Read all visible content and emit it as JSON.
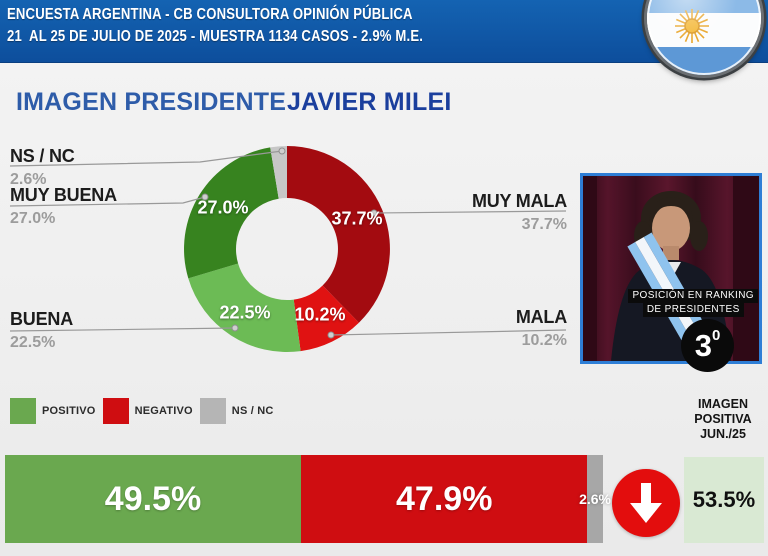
{
  "header": {
    "line1": "ENCUESTA ARGENTINA - CB CONSULTORA OPINIÓN PÚBLICA",
    "line2": "21  AL 25 DE JULIO DE 2025 - MUESTRA 1134 CASOS - 2.9% M.E.",
    "flag_icon": "argentina-flag-badge"
  },
  "title": {
    "label": "IMAGEN PRESIDENTE",
    "subject": "JAVIER MILEI"
  },
  "chart_data": [
    {
      "type": "pie",
      "subtype": "donut",
      "title": "IMAGEN PRESIDENTE JAVIER MILEI",
      "direction": "clockwise",
      "start_angle_deg": 0,
      "segments": [
        {
          "label": "MUY MALA",
          "value": 37.7,
          "color": "#a30b10"
        },
        {
          "label": "MALA",
          "value": 10.2,
          "color": "#e01212"
        },
        {
          "label": "BUENA",
          "value": 22.5,
          "color": "#6cbb55"
        },
        {
          "label": "MUY BUENA",
          "value": 27.0,
          "color": "#37831f"
        },
        {
          "label": "NS / NC",
          "value": 2.6,
          "color": "#c7c7c7"
        }
      ]
    },
    {
      "type": "bar",
      "subtype": "stacked-horizontal",
      "segments": [
        {
          "label": "POSITIVO",
          "value": 49.5,
          "color": "#6aa84f"
        },
        {
          "label": "NEGATIVO",
          "value": 47.9,
          "color": "#cf0d11"
        },
        {
          "label": "NS / NC",
          "value": 2.6,
          "color": "#a7a7a7"
        }
      ],
      "comparison": {
        "label_lines": [
          "IMAGEN",
          "POSITIVA",
          "JUN./25"
        ],
        "value": 53.5,
        "trend": "down"
      }
    }
  ],
  "legend": {
    "items": [
      {
        "label": "POSITIVO",
        "color": "#6aa84f"
      },
      {
        "label": "NEGATIVO",
        "color": "#cf0d11"
      },
      {
        "label": "NS / NC",
        "color": "#b5b5b5"
      }
    ]
  },
  "ranking": {
    "caption_line1": "POSICIÓN EN RANKING",
    "caption_line2": "DE PRESIDENTES",
    "number": "3",
    "ordinal": "0"
  },
  "palette": {
    "header_bg": "#0f55a4",
    "title_primary": "#2e5ca9",
    "title_subject": "#1b3f9d",
    "label_dark": "#1c1c1c",
    "label_gray": "#9c9c9c",
    "callout_line": "#999999",
    "photo_border": "#2e7ed6",
    "prev_box_bg": "#d9e9d3",
    "trend_circle": "#e30d0d",
    "rank_circle": "#0a0a0a"
  }
}
